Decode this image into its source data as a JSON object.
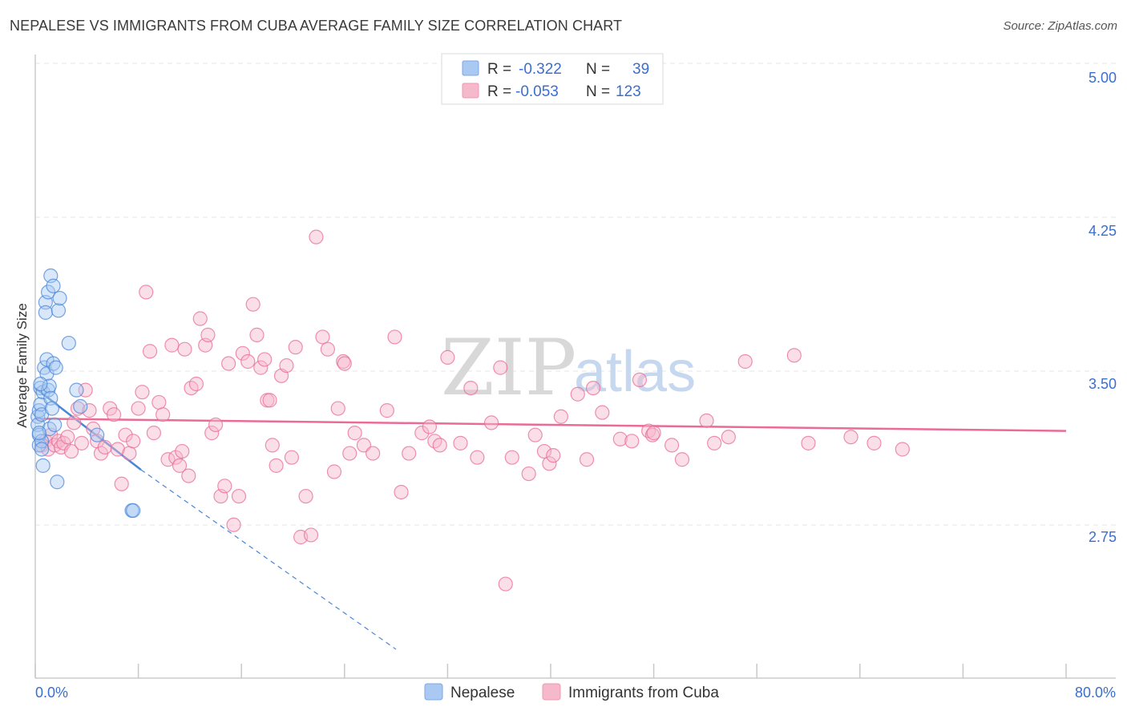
{
  "title": "NEPALESE VS IMMIGRANTS FROM CUBA AVERAGE FAMILY SIZE CORRELATION CHART",
  "source": "Source: ZipAtlas.com",
  "watermark": {
    "zip": "ZIP",
    "atlas": "atlas"
  },
  "legend": {
    "r_label": "R =",
    "n_label": "N =",
    "rows": [
      {
        "r": "-0.322",
        "n": "39",
        "color": "#a9c9f2"
      },
      {
        "r": "-0.053",
        "n": "123",
        "color": "#f6b9cb"
      }
    ]
  },
  "bottom_legend": [
    "Nepalese",
    "Immigrants from Cuba"
  ],
  "chart_data": {
    "type": "scatter",
    "title": "NEPALESE VS IMMIGRANTS FROM CUBA AVERAGE FAMILY SIZE CORRELATION CHART",
    "ylabel": "Average Family Size",
    "xlabel": "",
    "xlim": [
      0,
      80
    ],
    "ylim": [
      2.2,
      5.1
    ],
    "x_tick_labels": [
      "0.0%",
      "80.0%"
    ],
    "y_ticks": [
      2.75,
      3.5,
      4.25,
      5.0
    ],
    "y_tick_labels": [
      "2.75",
      "3.50",
      "4.25",
      "5.00"
    ],
    "grid": true,
    "series": [
      {
        "name": "Nepalese",
        "color": "#4a86d8",
        "fill": "#a9c9f2",
        "points": [
          [
            0.2,
            3.34
          ],
          [
            0.2,
            3.3
          ],
          [
            0.3,
            3.37
          ],
          [
            0.3,
            3.25
          ],
          [
            0.3,
            3.2
          ],
          [
            0.4,
            3.48
          ],
          [
            0.4,
            3.4
          ],
          [
            0.5,
            3.35
          ],
          [
            0.5,
            3.22
          ],
          [
            0.5,
            3.18
          ],
          [
            0.6,
            3.1
          ],
          [
            0.6,
            3.46
          ],
          [
            0.7,
            3.58
          ],
          [
            0.8,
            3.9
          ],
          [
            0.8,
            3.85
          ],
          [
            0.9,
            3.62
          ],
          [
            0.9,
            3.55
          ],
          [
            1.0,
            3.95
          ],
          [
            1.0,
            3.47
          ],
          [
            1.1,
            3.49
          ],
          [
            1.1,
            3.28
          ],
          [
            1.2,
            4.03
          ],
          [
            1.2,
            3.43
          ],
          [
            1.3,
            3.38
          ],
          [
            1.4,
            3.98
          ],
          [
            1.4,
            3.6
          ],
          [
            1.5,
            3.3
          ],
          [
            1.6,
            3.58
          ],
          [
            1.7,
            3.02
          ],
          [
            1.8,
            3.86
          ],
          [
            1.9,
            3.92
          ],
          [
            2.6,
            3.7
          ],
          [
            3.2,
            3.47
          ],
          [
            3.5,
            3.39
          ],
          [
            4.8,
            3.25
          ],
          [
            7.5,
            2.88
          ],
          [
            7.6,
            2.88
          ],
          [
            0.4,
            3.5
          ],
          [
            0.3,
            3.26
          ]
        ],
        "trend": {
          "x0": 0,
          "y0": 3.48,
          "x1": 8.2,
          "y1": 3.08,
          "dash_to": [
            28,
            2.2
          ]
        }
      },
      {
        "name": "Immigrants from Cuba",
        "color": "#e96b96",
        "fill": "#f6b9cb",
        "points": [
          [
            0.5,
            3.2
          ],
          [
            0.8,
            3.22
          ],
          [
            1.0,
            3.18
          ],
          [
            1.2,
            3.25
          ],
          [
            1.5,
            3.2
          ],
          [
            1.8,
            3.22
          ],
          [
            2.0,
            3.19
          ],
          [
            2.2,
            3.21
          ],
          [
            2.5,
            3.24
          ],
          [
            2.8,
            3.17
          ],
          [
            3.0,
            3.31
          ],
          [
            3.3,
            3.38
          ],
          [
            3.6,
            3.21
          ],
          [
            3.9,
            3.47
          ],
          [
            4.2,
            3.37
          ],
          [
            4.5,
            3.28
          ],
          [
            4.8,
            3.22
          ],
          [
            5.1,
            3.16
          ],
          [
            5.4,
            3.19
          ],
          [
            5.8,
            3.38
          ],
          [
            6.1,
            3.35
          ],
          [
            6.4,
            3.18
          ],
          [
            6.7,
            3.01
          ],
          [
            7.0,
            3.25
          ],
          [
            7.3,
            3.16
          ],
          [
            7.6,
            3.22
          ],
          [
            8.0,
            3.38
          ],
          [
            8.3,
            3.46
          ],
          [
            8.6,
            3.95
          ],
          [
            8.9,
            3.66
          ],
          [
            9.2,
            3.26
          ],
          [
            9.6,
            3.41
          ],
          [
            9.9,
            3.35
          ],
          [
            10.3,
            3.13
          ],
          [
            10.6,
            3.69
          ],
          [
            10.9,
            3.14
          ],
          [
            11.2,
            3.1
          ],
          [
            11.6,
            3.67
          ],
          [
            11.9,
            3.05
          ],
          [
            12.1,
            3.48
          ],
          [
            12.5,
            3.5
          ],
          [
            12.8,
            3.82
          ],
          [
            13.2,
            3.69
          ],
          [
            13.4,
            3.74
          ],
          [
            13.7,
            3.26
          ],
          [
            14.0,
            3.3
          ],
          [
            14.4,
            2.95
          ],
          [
            14.7,
            3.0
          ],
          [
            15.0,
            3.6
          ],
          [
            15.4,
            2.81
          ],
          [
            15.8,
            2.95
          ],
          [
            16.1,
            3.65
          ],
          [
            16.5,
            3.61
          ],
          [
            16.9,
            3.89
          ],
          [
            17.2,
            3.74
          ],
          [
            17.5,
            3.58
          ],
          [
            17.8,
            3.62
          ],
          [
            18.0,
            3.42
          ],
          [
            18.4,
            3.2
          ],
          [
            18.7,
            3.1
          ],
          [
            19.1,
            3.54
          ],
          [
            19.5,
            3.59
          ],
          [
            19.9,
            3.14
          ],
          [
            20.2,
            3.68
          ],
          [
            20.6,
            2.75
          ],
          [
            21.0,
            2.95
          ],
          [
            21.4,
            2.76
          ],
          [
            21.8,
            4.22
          ],
          [
            22.3,
            3.73
          ],
          [
            22.7,
            3.67
          ],
          [
            23.2,
            3.07
          ],
          [
            23.5,
            3.38
          ],
          [
            23.9,
            3.61
          ],
          [
            24.4,
            3.16
          ],
          [
            24.8,
            3.26
          ],
          [
            25.5,
            3.2
          ],
          [
            26.2,
            3.16
          ],
          [
            27.3,
            3.37
          ],
          [
            27.9,
            3.73
          ],
          [
            28.4,
            2.97
          ],
          [
            29.0,
            3.16
          ],
          [
            30.0,
            3.26
          ],
          [
            30.6,
            3.29
          ],
          [
            31.0,
            3.22
          ],
          [
            31.4,
            3.2
          ],
          [
            32.0,
            3.63
          ],
          [
            33.0,
            3.21
          ],
          [
            33.8,
            3.48
          ],
          [
            34.3,
            3.14
          ],
          [
            35.4,
            3.31
          ],
          [
            36.1,
            3.58
          ],
          [
            36.5,
            2.52
          ],
          [
            37.0,
            3.14
          ],
          [
            38.3,
            3.06
          ],
          [
            38.8,
            3.25
          ],
          [
            39.5,
            3.17
          ],
          [
            39.9,
            3.11
          ],
          [
            40.2,
            3.15
          ],
          [
            40.8,
            3.34
          ],
          [
            42.1,
            3.45
          ],
          [
            42.8,
            3.13
          ],
          [
            43.3,
            3.48
          ],
          [
            44.0,
            3.36
          ],
          [
            45.4,
            3.23
          ],
          [
            46.3,
            3.22
          ],
          [
            46.9,
            3.52
          ],
          [
            47.6,
            3.27
          ],
          [
            47.9,
            3.25
          ],
          [
            49.4,
            3.2
          ],
          [
            50.2,
            3.13
          ],
          [
            52.1,
            3.32
          ],
          [
            52.7,
            3.21
          ],
          [
            53.8,
            3.24
          ],
          [
            55.1,
            3.61
          ],
          [
            58.9,
            3.64
          ],
          [
            60.0,
            3.21
          ],
          [
            63.3,
            3.24
          ],
          [
            65.1,
            3.21
          ],
          [
            67.3,
            3.18
          ],
          [
            48.0,
            3.26
          ],
          [
            18.2,
            3.42
          ],
          [
            24.0,
            3.6
          ],
          [
            11.4,
            3.17
          ]
        ],
        "trend": {
          "x0": 0,
          "y0": 3.33,
          "x1": 80,
          "y1": 3.27
        }
      }
    ]
  }
}
